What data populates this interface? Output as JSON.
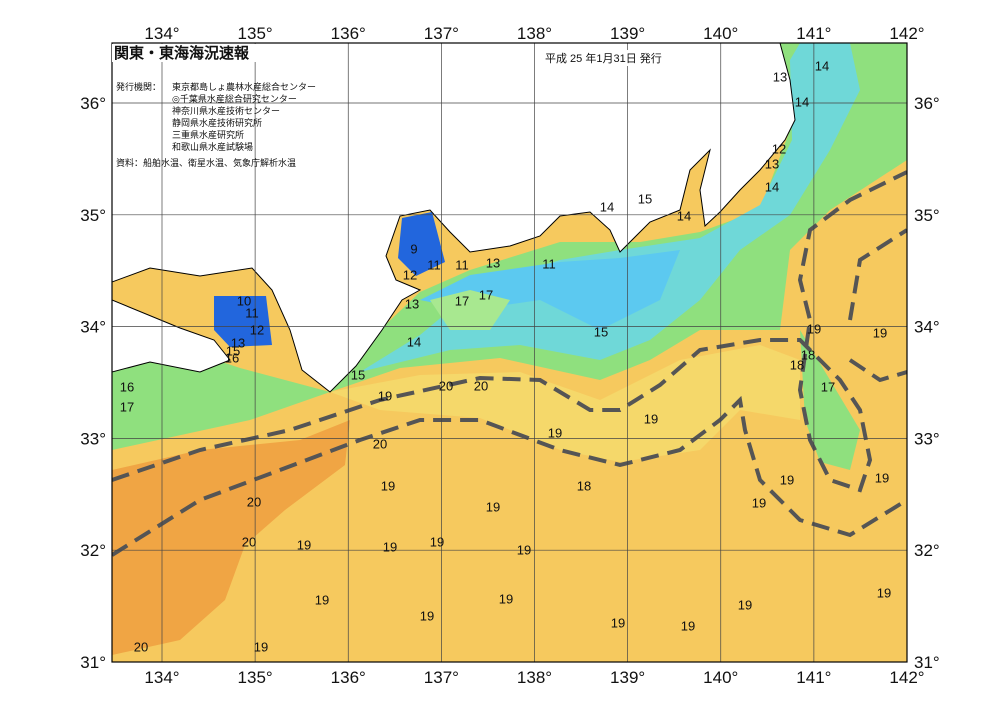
{
  "header": {
    "title": "関東・東海海況速報",
    "date": "平成 25 年1月31日 発行"
  },
  "agencies": {
    "label": "発行機関：",
    "items": [
      "東京都島しょ農林水産総合センター",
      "◎千葉県水産総合研究センター",
      "神奈川県水産技術センター",
      "静岡県水産技術研究所",
      "三重県水産研究所",
      "和歌山県水産試験場"
    ]
  },
  "source": "資料：船舶水温、衛星水温、気象庁解析水温",
  "map": {
    "lon_ticks": [
      {
        "value": 134,
        "label": "134°"
      },
      {
        "value": 135,
        "label": "135°"
      },
      {
        "value": 136,
        "label": "136°"
      },
      {
        "value": 137,
        "label": "137°"
      },
      {
        "value": 138,
        "label": "138°"
      },
      {
        "value": 139,
        "label": "139°"
      },
      {
        "value": 140,
        "label": "140°"
      },
      {
        "value": 141,
        "label": "141°"
      },
      {
        "value": 142,
        "label": "142°"
      }
    ],
    "lat_ticks": [
      {
        "value": 31,
        "label": "31°"
      },
      {
        "value": 32,
        "label": "32°"
      },
      {
        "value": 33,
        "label": "33°"
      },
      {
        "value": 34,
        "label": "34°"
      },
      {
        "value": 35,
        "label": "35°"
      },
      {
        "value": 36,
        "label": "36°"
      }
    ],
    "contour_labels": [
      "13",
      "14",
      "14",
      "12",
      "13",
      "14",
      "14",
      "15",
      "14",
      "9",
      "12",
      "11",
      "11",
      "13",
      "11",
      "10",
      "11",
      "12",
      "13",
      "17",
      "17",
      "13",
      "15",
      "16",
      "14",
      "15",
      "19",
      "19",
      "18",
      "18",
      "16",
      "17",
      "15",
      "20",
      "20",
      "19",
      "17",
      "19",
      "19",
      "20",
      "19",
      "18",
      "19",
      "19",
      "20",
      "19",
      "19",
      "20",
      "19",
      "19",
      "19",
      "19",
      "19",
      "19",
      "19",
      "19",
      "19",
      "19",
      "19",
      "20",
      "19"
    ]
  }
}
